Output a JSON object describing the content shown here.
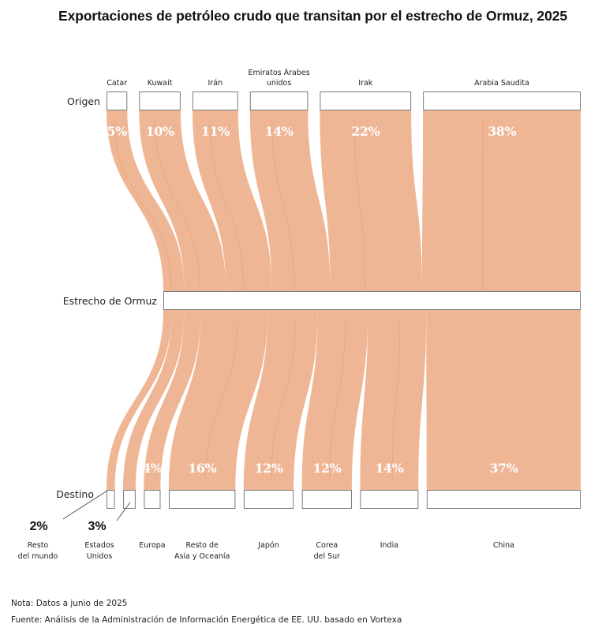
{
  "chart_data": {
    "type": "sankey",
    "title": "Exportaciones de petróleo crudo que transitan por el estrecho de Ormuz, 2025",
    "stage_labels": {
      "origin": "Origen",
      "middle": "Estrecho de Ormuz",
      "destination": "Destino"
    },
    "origins": [
      {
        "name": "Catar",
        "label_lines": [
          "Catar"
        ],
        "value": 5,
        "value_label": "5%"
      },
      {
        "name": "Kuwait",
        "label_lines": [
          "Kuwait"
        ],
        "value": 10,
        "value_label": "10%"
      },
      {
        "name": "Irán",
        "label_lines": [
          "Irán"
        ],
        "value": 11,
        "value_label": "11%"
      },
      {
        "name": "Emiratos Árabes unidos",
        "label_lines": [
          "Emiratos Árabes",
          "unidos"
        ],
        "value": 14,
        "value_label": "14%"
      },
      {
        "name": "Irak",
        "label_lines": [
          "Irak"
        ],
        "value": 22,
        "value_label": "22%"
      },
      {
        "name": "Arabia Saudita",
        "label_lines": [
          "Arabia Saudita"
        ],
        "value": 38,
        "value_label": "38%"
      }
    ],
    "destinations": [
      {
        "name": "Resto del mundo",
        "label_lines": [
          "Resto",
          "del mundo"
        ],
        "value": 2,
        "value_label": "2%",
        "callout": true
      },
      {
        "name": "Estados Unidos",
        "label_lines": [
          "Estados",
          "Unidos"
        ],
        "value": 3,
        "value_label": "3%",
        "callout": true
      },
      {
        "name": "Europa",
        "label_lines": [
          "Europa"
        ],
        "value": 4,
        "value_label": "4%",
        "callout": false
      },
      {
        "name": "Resto de Asia y Oceanía",
        "label_lines": [
          "Resto de",
          "Asia y Oceanía"
        ],
        "value": 16,
        "value_label": "16%",
        "callout": false
      },
      {
        "name": "Japón",
        "label_lines": [
          "Japón"
        ],
        "value": 12,
        "value_label": "12%",
        "callout": false
      },
      {
        "name": "Corea del Sur",
        "label_lines": [
          "Corea",
          "del Sur"
        ],
        "value": 12,
        "value_label": "12%",
        "callout": false
      },
      {
        "name": "India",
        "label_lines": [
          "India"
        ],
        "value": 14,
        "value_label": "14%",
        "callout": false
      },
      {
        "name": "China",
        "label_lines": [
          "China"
        ],
        "value": 37,
        "value_label": "37%",
        "callout": false
      }
    ],
    "flow_color": "#efb696",
    "flow_line_color": "#e8955f",
    "box_stroke": "#7a7a7a"
  },
  "notes": {
    "nota": "Nota: Datos a junio de 2025",
    "fuente": "Fuente: Análisis de la Administración de Información Energética de EE. UU. basado en Vortexa"
  }
}
